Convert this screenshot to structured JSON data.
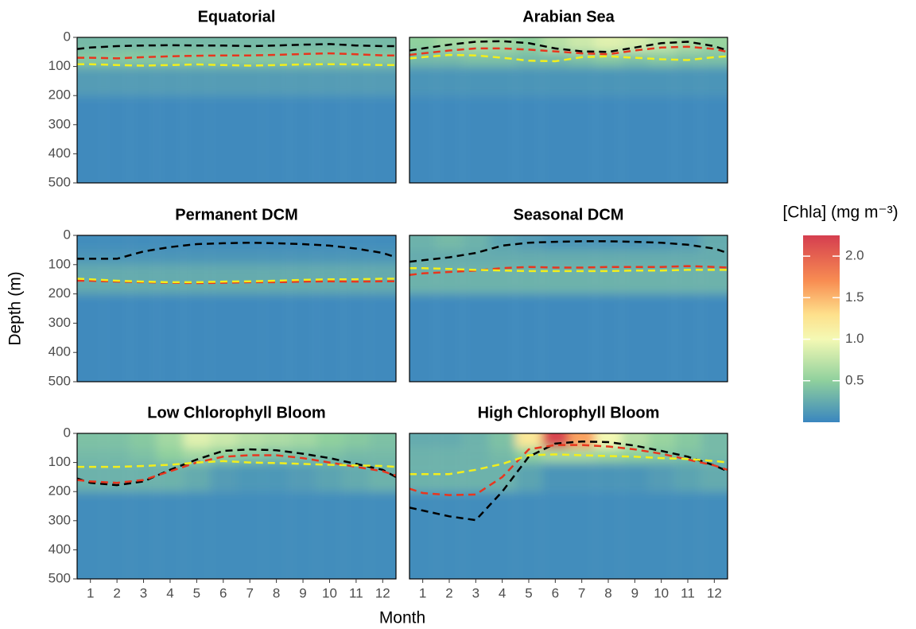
{
  "chart_data": {
    "type": "heatmap",
    "x_label": "Month",
    "y_label": "Depth (m)",
    "xlim": [
      0.5,
      12.5
    ],
    "xticks": [
      1,
      2,
      3,
      4,
      5,
      6,
      7,
      8,
      9,
      10,
      11,
      12
    ],
    "ylim": [
      500,
      0
    ],
    "yticks": [
      0,
      100,
      200,
      300,
      400,
      500
    ],
    "depth_bins": [
      0,
      50,
      100,
      200,
      500
    ],
    "line_x": [
      0.5,
      1,
      2,
      3,
      4,
      5,
      6,
      7,
      8,
      9,
      10,
      11,
      12,
      12.5
    ],
    "colorbar": {
      "title": "[Chla] (mg m⁻³)",
      "clim": [
        0,
        2.25
      ],
      "ticks": [
        {
          "value": 0.5,
          "label": "0.5"
        },
        {
          "value": 1,
          "label": "1.0"
        },
        {
          "value": 1.5,
          "label": "1.5"
        },
        {
          "value": 2,
          "label": "2.0"
        }
      ],
      "colorscale": [
        [
          0,
          "#3a86bf"
        ],
        [
          0.5,
          "#8fd09d"
        ],
        [
          1,
          "#f4f9b4"
        ],
        [
          1.3,
          "#fee08b"
        ],
        [
          1.7,
          "#f88d52"
        ],
        [
          2.25,
          "#d53e4f"
        ]
      ]
    },
    "panels": [
      {
        "title": "Equatorial",
        "z": [
          [
            0.35,
            0.35,
            0.35,
            0.35,
            0.35,
            0.35,
            0.35,
            0.35,
            0.35,
            0.35,
            0.35,
            0.35
          ],
          [
            0.45,
            0.45,
            0.45,
            0.45,
            0.45,
            0.45,
            0.45,
            0.45,
            0.45,
            0.45,
            0.45,
            0.45
          ],
          [
            0.15,
            0.15,
            0.15,
            0.15,
            0.15,
            0.15,
            0.15,
            0.15,
            0.15,
            0.15,
            0.15,
            0.15
          ],
          [
            0.03,
            0.03,
            0.03,
            0.03,
            0.03,
            0.03,
            0.03,
            0.03,
            0.03,
            0.03,
            0.03,
            0.03
          ]
        ],
        "series": [
          {
            "color": "#000000",
            "values": [
              40,
              35,
              30,
              28,
              27,
              28,
              28,
              30,
              28,
              25,
              23,
              28,
              30,
              30
            ]
          },
          {
            "color": "#e8361e",
            "values": [
              70,
              70,
              72,
              68,
              65,
              63,
              62,
              62,
              60,
              57,
              55,
              58,
              62,
              62
            ]
          },
          {
            "color": "#f2ee1c",
            "values": [
              92,
              92,
              95,
              97,
              95,
              93,
              95,
              97,
              95,
              93,
              92,
              93,
              95,
              95
            ]
          }
        ]
      },
      {
        "title": "Arabian Sea",
        "z": [
          [
            0.5,
            0.6,
            0.65,
            0.6,
            0.5,
            0.7,
            0.8,
            0.9,
            0.85,
            0.75,
            0.65,
            0.55
          ],
          [
            0.35,
            0.35,
            0.4,
            0.4,
            0.35,
            0.35,
            0.4,
            0.45,
            0.4,
            0.45,
            0.4,
            0.4
          ],
          [
            0.1,
            0.1,
            0.1,
            0.1,
            0.1,
            0.1,
            0.1,
            0.1,
            0.1,
            0.1,
            0.1,
            0.1
          ],
          [
            0.03,
            0.03,
            0.03,
            0.03,
            0.03,
            0.03,
            0.03,
            0.03,
            0.03,
            0.03,
            0.03,
            0.03
          ]
        ],
        "series": [
          {
            "color": "#000000",
            "values": [
              45,
              38,
              25,
              15,
              13,
              20,
              38,
              48,
              50,
              35,
              20,
              15,
              30,
              45
            ]
          },
          {
            "color": "#e8361e",
            "values": [
              60,
              55,
              45,
              38,
              38,
              42,
              48,
              55,
              58,
              45,
              35,
              32,
              40,
              50
            ]
          },
          {
            "color": "#f2ee1c",
            "values": [
              72,
              68,
              60,
              62,
              70,
              80,
              82,
              68,
              65,
              70,
              75,
              78,
              68,
              65
            ]
          }
        ]
      },
      {
        "title": "Permanent DCM",
        "z": [
          [
            0.05,
            0.05,
            0.05,
            0.05,
            0.05,
            0.05,
            0.05,
            0.05,
            0.05,
            0.05,
            0.05,
            0.05
          ],
          [
            0.1,
            0.1,
            0.1,
            0.1,
            0.1,
            0.1,
            0.1,
            0.1,
            0.1,
            0.1,
            0.1,
            0.1
          ],
          [
            0.25,
            0.25,
            0.25,
            0.25,
            0.25,
            0.25,
            0.25,
            0.25,
            0.25,
            0.25,
            0.25,
            0.25
          ],
          [
            0.03,
            0.03,
            0.03,
            0.03,
            0.03,
            0.03,
            0.03,
            0.03,
            0.03,
            0.03,
            0.03,
            0.03
          ]
        ],
        "series": [
          {
            "color": "#000000",
            "values": [
              80,
              80,
              80,
              55,
              40,
              30,
              27,
              25,
              27,
              30,
              35,
              45,
              60,
              75
            ]
          },
          {
            "color": "#e8361e",
            "values": [
              155,
              155,
              158,
              160,
              162,
              163,
              162,
              160,
              160,
              158,
              157,
              158,
              157,
              157
            ]
          },
          {
            "color": "#f2ee1c",
            "values": [
              148,
              150,
              155,
              158,
              160,
              160,
              158,
              157,
              155,
              152,
              150,
              150,
              148,
              148
            ]
          }
        ]
      },
      {
        "title": "Seasonal DCM",
        "z": [
          [
            0.3,
            0.35,
            0.3,
            0.2,
            0.15,
            0.1,
            0.1,
            0.1,
            0.1,
            0.12,
            0.15,
            0.25
          ],
          [
            0.25,
            0.25,
            0.25,
            0.25,
            0.25,
            0.25,
            0.25,
            0.25,
            0.25,
            0.25,
            0.25,
            0.25
          ],
          [
            0.3,
            0.3,
            0.3,
            0.3,
            0.3,
            0.3,
            0.3,
            0.3,
            0.3,
            0.3,
            0.3,
            0.3
          ],
          [
            0.03,
            0.03,
            0.03,
            0.03,
            0.03,
            0.03,
            0.03,
            0.03,
            0.03,
            0.03,
            0.03,
            0.03
          ]
        ],
        "series": [
          {
            "color": "#000000",
            "values": [
              90,
              85,
              75,
              60,
              35,
              25,
              22,
              20,
              20,
              22,
              25,
              32,
              45,
              60
            ]
          },
          {
            "color": "#e8361e",
            "values": [
              135,
              130,
              125,
              120,
              112,
              108,
              110,
              110,
              108,
              108,
              108,
              105,
              108,
              110
            ]
          },
          {
            "color": "#f2ee1c",
            "values": [
              112,
              112,
              115,
              118,
              120,
              122,
              122,
              122,
              122,
              120,
              120,
              118,
              118,
              118
            ]
          }
        ]
      },
      {
        "title": "Low Chlorophyll Bloom",
        "z": [
          [
            0.4,
            0.4,
            0.45,
            0.6,
            0.9,
            0.8,
            0.7,
            0.65,
            0.6,
            0.5,
            0.45,
            0.4
          ],
          [
            0.35,
            0.35,
            0.4,
            0.5,
            0.6,
            0.5,
            0.45,
            0.4,
            0.4,
            0.4,
            0.35,
            0.35
          ],
          [
            0.3,
            0.3,
            0.3,
            0.3,
            0.25,
            0.15,
            0.12,
            0.12,
            0.15,
            0.2,
            0.25,
            0.3
          ],
          [
            0.05,
            0.05,
            0.05,
            0.05,
            0.05,
            0.05,
            0.05,
            0.05,
            0.05,
            0.05,
            0.05,
            0.05
          ]
        ],
        "series": [
          {
            "color": "#000000",
            "values": [
              155,
              170,
              178,
              165,
              125,
              90,
              60,
              55,
              58,
              70,
              85,
              105,
              125,
              150
            ]
          },
          {
            "color": "#e8361e",
            "values": [
              160,
              165,
              170,
              160,
              130,
              100,
              80,
              75,
              75,
              85,
              100,
              115,
              130,
              145
            ]
          },
          {
            "color": "#f2ee1c",
            "values": [
              115,
              115,
              115,
              112,
              108,
              100,
              95,
              100,
              102,
              105,
              108,
              110,
              112,
              115
            ]
          }
        ]
      },
      {
        "title": "High Chlorophyll Bloom",
        "z": [
          [
            0.25,
            0.25,
            0.3,
            0.4,
            1.2,
            2.2,
            1.6,
            1.0,
            0.7,
            0.55,
            0.45,
            0.35
          ],
          [
            0.3,
            0.3,
            0.3,
            0.35,
            0.5,
            0.6,
            0.6,
            0.55,
            0.5,
            0.45,
            0.4,
            0.35
          ],
          [
            0.3,
            0.3,
            0.3,
            0.3,
            0.2,
            0.1,
            0.1,
            0.1,
            0.1,
            0.15,
            0.2,
            0.25
          ],
          [
            0.05,
            0.05,
            0.05,
            0.05,
            0.05,
            0.05,
            0.05,
            0.05,
            0.05,
            0.05,
            0.05,
            0.05
          ]
        ],
        "series": [
          {
            "color": "#000000",
            "values": [
              255,
              265,
              285,
              298,
              200,
              80,
              35,
              28,
              30,
              42,
              60,
              80,
              110,
              130
            ]
          },
          {
            "color": "#e8361e",
            "values": [
              190,
              205,
              212,
              210,
              150,
              55,
              40,
              40,
              45,
              55,
              70,
              90,
              110,
              125
            ]
          },
          {
            "color": "#f2ee1c",
            "values": [
              140,
              140,
              140,
              125,
              105,
              75,
              72,
              75,
              78,
              80,
              85,
              88,
              95,
              100
            ]
          }
        ]
      }
    ]
  }
}
